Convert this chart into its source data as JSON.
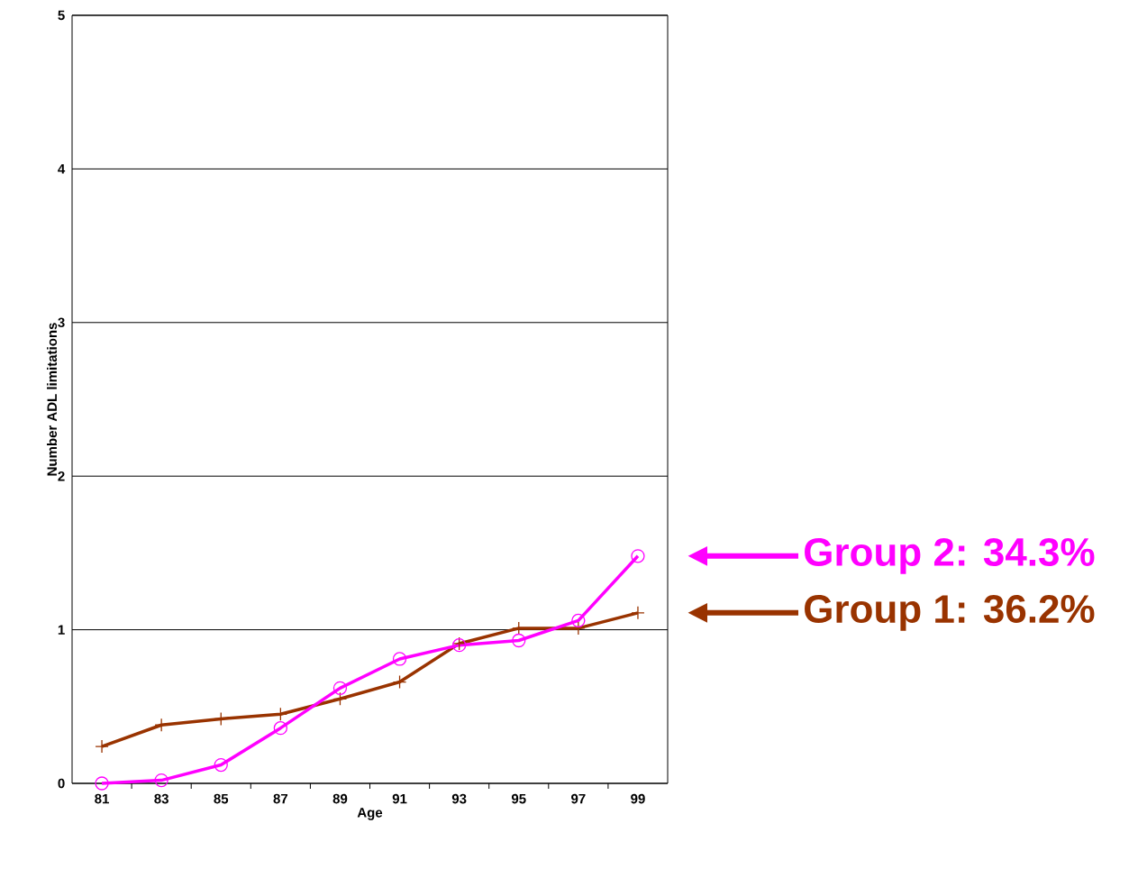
{
  "chart_data": {
    "type": "line",
    "xlabel": "Age",
    "ylabel": "Number ADL limitations",
    "categories": [
      "81",
      "83",
      "85",
      "87",
      "89",
      "91",
      "93",
      "95",
      "97",
      "99"
    ],
    "series": [
      {
        "name": "Group 2: 34.3%",
        "color": "#ff00ff",
        "marker": "circle",
        "values": [
          0,
          0.02,
          0.12,
          0.36,
          0.62,
          0.81,
          0.9,
          0.93,
          1.06,
          1.48
        ]
      },
      {
        "name": "Group 1: 36.2%",
        "color": "#993300",
        "marker": "cross",
        "values": [
          0.24,
          0.38,
          0.42,
          0.45,
          0.55,
          0.66,
          0.91,
          1.01,
          1.01,
          1.11
        ]
      }
    ],
    "ylim": [
      0,
      5
    ],
    "yticks": [
      0,
      1,
      2,
      3,
      4,
      5
    ],
    "grid": "y",
    "legend": "right",
    "line_style": "solid"
  }
}
